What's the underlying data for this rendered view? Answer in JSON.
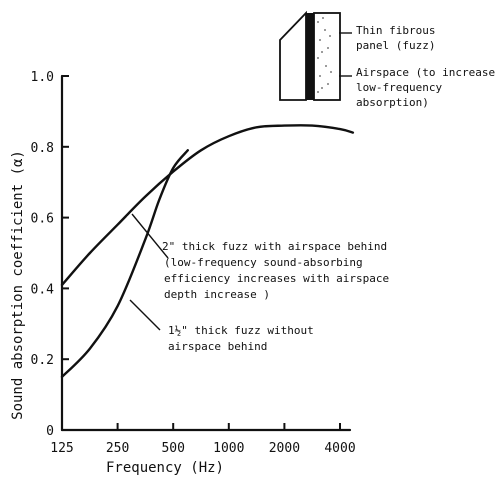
{
  "chart_data": {
    "type": "line",
    "xlabel": "Frequency (Hz)",
    "ylabel": "Sound absorption coefficient (α)",
    "x_scale": "log",
    "x_ticks": [
      125,
      250,
      500,
      1000,
      2000,
      4000
    ],
    "x_tick_labels": [
      "125",
      "250",
      "500",
      "1000",
      "2000",
      "4000"
    ],
    "ylim": [
      0,
      1.0
    ],
    "y_ticks": [
      0,
      0.2,
      0.4,
      0.6,
      0.8,
      1.0
    ],
    "y_tick_labels": [
      "0",
      "0.2",
      "0.4",
      "0.6",
      "0.8",
      "1.0"
    ],
    "grid": false,
    "legend": "none",
    "series": [
      {
        "key": "with_airspace",
        "x": [
          125,
          177,
          250,
          354,
          500,
          707,
          1000,
          1414,
          2000,
          2828,
          4000,
          4700
        ],
        "values": [
          0.41,
          0.5,
          0.58,
          0.66,
          0.73,
          0.79,
          0.83,
          0.855,
          0.86,
          0.86,
          0.85,
          0.84
        ]
      },
      {
        "key": "without_airspace",
        "x": [
          125,
          177,
          250,
          354,
          420,
          500,
          600
        ],
        "values": [
          0.15,
          0.23,
          0.35,
          0.54,
          0.65,
          0.74,
          0.79
        ]
      }
    ],
    "annotations": {
      "with_airspace": [
        "2\" thick fuzz with airspace behind",
        "(low-frequency sound-absorbing",
        "efficiency increases with airspace",
        "depth increase )"
      ],
      "without_airspace": [
        "1½\" thick fuzz without",
        "airspace behind"
      ],
      "inset_panel": [
        "Thin fibrous",
        "panel (fuzz)"
      ],
      "inset_airspace": [
        "Airspace (to increase",
        "low-frequency",
        "absorption)"
      ]
    }
  }
}
